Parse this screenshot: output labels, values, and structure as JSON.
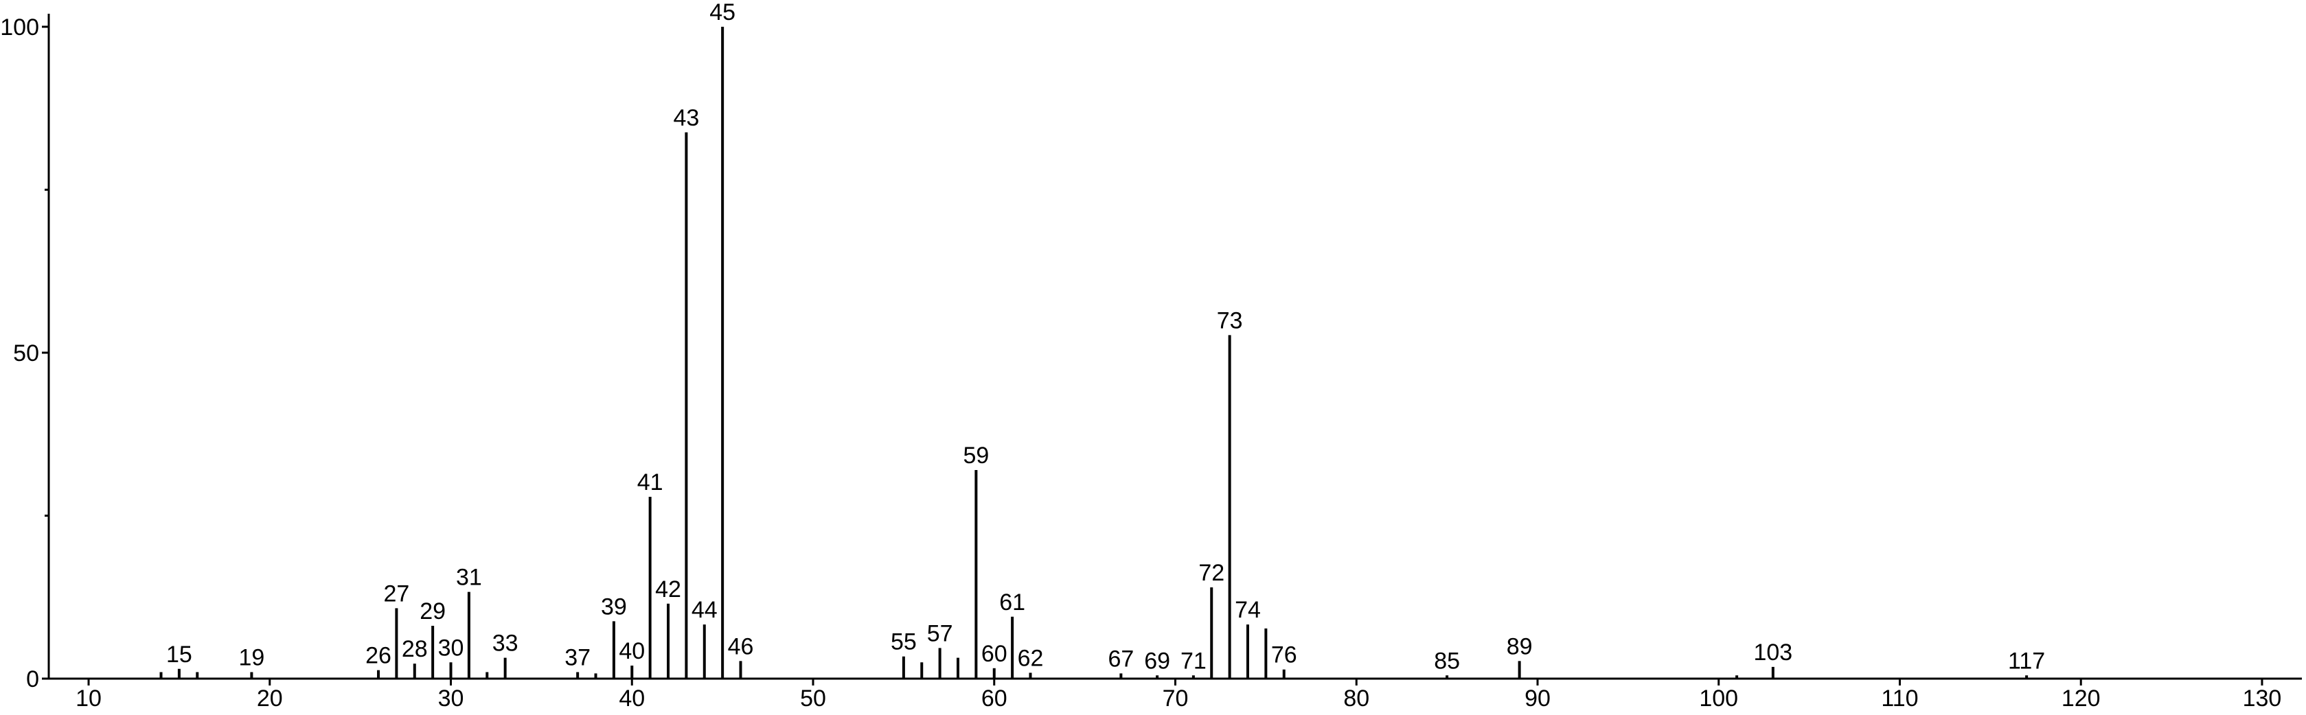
{
  "chart_data": {
    "type": "stem",
    "x": [
      14,
      15,
      16,
      19,
      26,
      27,
      28,
      29,
      30,
      31,
      32,
      33,
      37,
      38,
      39,
      40,
      41,
      42,
      43,
      44,
      45,
      46,
      55,
      56,
      57,
      58,
      59,
      60,
      61,
      62,
      67,
      69,
      71,
      72,
      73,
      74,
      75,
      76,
      85,
      89,
      101,
      103,
      117
    ],
    "values": [
      1,
      1.5,
      1,
      1,
      1.3,
      10.8,
      2.3,
      8.1,
      2.5,
      13.3,
      1,
      3.2,
      1,
      0.8,
      8.8,
      2,
      27.9,
      11.5,
      83.8,
      8.3,
      100,
      2.7,
      3.4,
      2.5,
      4.7,
      3.2,
      32,
      1.6,
      9.5,
      0.9,
      0.8,
      0.5,
      0.5,
      14,
      52.7,
      8.3,
      7.7,
      1.4,
      0.5,
      2.7,
      0.5,
      1.8,
      0.5
    ],
    "labels": [
      null,
      "15",
      null,
      "19",
      "26",
      "27",
      "28",
      "29",
      "30",
      "31",
      null,
      "33",
      "37",
      null,
      "39",
      "40",
      "41",
      "42",
      "43",
      "44",
      "45",
      "46",
      "55",
      null,
      "57",
      null,
      "59",
      "60",
      "61",
      "62",
      "67",
      "69",
      "71",
      "72",
      "73",
      "74",
      null,
      "76",
      "85",
      "89",
      null,
      "103",
      "117"
    ],
    "color": "#000000",
    "xlim": [
      7.8,
      132.2
    ],
    "xticks": [
      10,
      20,
      30,
      40,
      50,
      60,
      70,
      80,
      90,
      100,
      110,
      120,
      130
    ],
    "ylim": [
      0,
      102
    ],
    "yticks": [
      0,
      50,
      100
    ],
    "yminorticks": [
      25,
      75
    ]
  }
}
